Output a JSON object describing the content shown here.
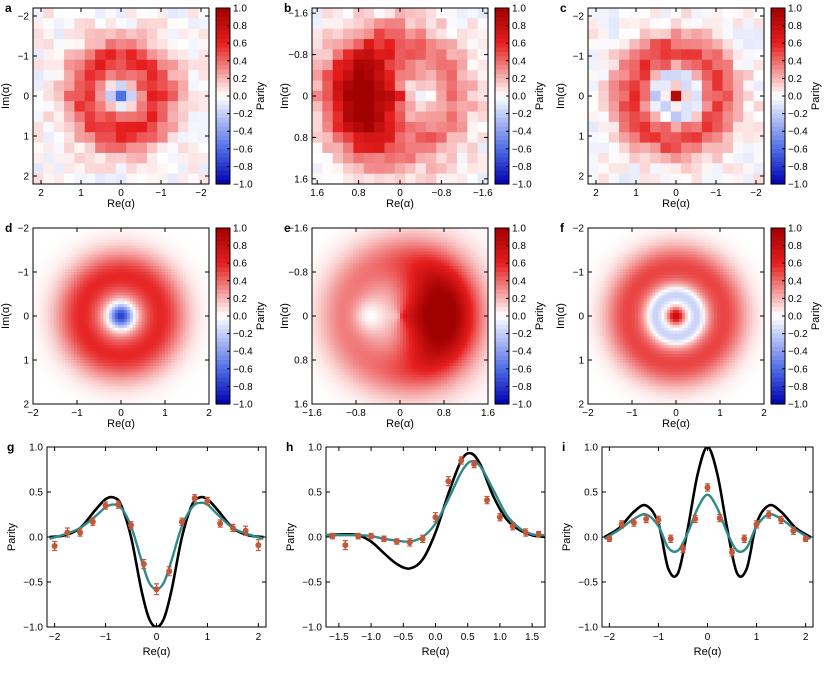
{
  "colors": {
    "theory_line": "#000000",
    "fit_line": "#2e8b8b",
    "data_points": "#c0583a",
    "map_negative": "#0000b0",
    "map_zero": "#ffffff",
    "map_positive": "#a00000"
  },
  "chart_data": [
    {
      "panel": "a",
      "type": "heatmap",
      "kind": "measured",
      "state": "cat-odd",
      "xlabel": "Re(α)",
      "ylabel": "Im(α)",
      "colorbar_label": "Parity",
      "xlim": [
        2.2,
        -2.2
      ],
      "ylim": [
        -2.2,
        2.2
      ],
      "x_ticks": [
        2,
        1,
        0,
        -1,
        -2
      ],
      "y_ticks": [
        -2,
        -1,
        0,
        1,
        2
      ],
      "clim": [
        -1,
        1
      ],
      "colorbar_ticks": [
        "1.0",
        "0.8",
        "0.6",
        "0.4",
        "0.2",
        "0.0",
        "−0.2",
        "−0.4",
        "−0.6",
        "−0.8",
        "−1.0"
      ],
      "grid_cells": 17
    },
    {
      "panel": "b",
      "type": "heatmap",
      "kind": "measured",
      "state": "cat-displaced",
      "xlabel": "Re(α)",
      "ylabel": "Im(α)",
      "colorbar_label": "Parity",
      "xlim": [
        1.7,
        -1.7
      ],
      "ylim": [
        -1.7,
        1.7
      ],
      "x_ticks": [
        1.6,
        0.8,
        0.0,
        -0.8,
        -1.6
      ],
      "y_ticks": [
        -1.6,
        -0.8,
        0.0,
        0.8,
        1.6
      ],
      "clim": [
        -1,
        1
      ],
      "colorbar_ticks": [
        "1.0",
        "0.8",
        "0.6",
        "0.4",
        "0.2",
        "0.0",
        "−0.2",
        "−0.4",
        "−0.6",
        "−0.8",
        "−1.0"
      ],
      "grid_cells": 17
    },
    {
      "panel": "c",
      "type": "heatmap",
      "kind": "measured",
      "state": "cat-even",
      "xlabel": "Re(α)",
      "ylabel": "Im(α)",
      "colorbar_label": "Parity",
      "xlim": [
        2.2,
        -2.2
      ],
      "ylim": [
        -2.2,
        2.2
      ],
      "x_ticks": [
        2,
        1,
        0,
        -1,
        -2
      ],
      "y_ticks": [
        -2,
        -1,
        0,
        1,
        2
      ],
      "clim": [
        -1,
        1
      ],
      "colorbar_ticks": [
        "1.0",
        "0.8",
        "0.6",
        "0.4",
        "0.2",
        "0.0",
        "−0.2",
        "−0.4",
        "−0.6",
        "−0.8",
        "−1.0"
      ],
      "grid_cells": 17
    },
    {
      "panel": "d",
      "type": "heatmap",
      "kind": "simulated",
      "state": "cat-odd",
      "xlabel": "Re(α)",
      "ylabel": "Im(α)",
      "colorbar_label": "Parity",
      "xlim": [
        -2,
        2
      ],
      "ylim": [
        -2,
        2
      ],
      "x_ticks": [
        -2,
        -1,
        0,
        1,
        2
      ],
      "y_ticks": [
        2,
        1,
        0,
        -1,
        -2
      ],
      "clim": [
        -1,
        1
      ],
      "colorbar_ticks": [
        "1.0",
        "0.8",
        "0.6",
        "0.4",
        "0.2",
        "0.0",
        "−0.2",
        "−0.4",
        "−0.6",
        "−0.8",
        "−1.0"
      ],
      "grid_cells": 60
    },
    {
      "panel": "e",
      "type": "heatmap",
      "kind": "simulated",
      "state": "cat-displaced",
      "xlabel": "Re(α)",
      "ylabel": "Im(α)",
      "colorbar_label": "Parity",
      "xlim": [
        -1.6,
        1.6
      ],
      "ylim": [
        -1.6,
        1.6
      ],
      "x_ticks": [
        -1.6,
        -0.8,
        0.0,
        0.8,
        1.6
      ],
      "y_ticks": [
        1.6,
        0.8,
        0.0,
        -0.8,
        -1.6
      ],
      "clim": [
        -1,
        1
      ],
      "colorbar_ticks": [
        "1.0",
        "0.8",
        "0.6",
        "0.4",
        "0.2",
        "0.0",
        "−0.2",
        "−0.4",
        "−0.6",
        "−0.8",
        "−1.0"
      ],
      "grid_cells": 60
    },
    {
      "panel": "f",
      "type": "heatmap",
      "kind": "simulated",
      "state": "cat-even",
      "xlabel": "Re(α)",
      "ylabel": "Im(α)",
      "colorbar_label": "Parity",
      "xlim": [
        -2,
        2
      ],
      "ylim": [
        -2,
        2
      ],
      "x_ticks": [
        -2,
        -1,
        0,
        1,
        2
      ],
      "y_ticks": [
        2,
        1,
        0,
        -1,
        -2
      ],
      "clim": [
        -1,
        1
      ],
      "colorbar_ticks": [
        "1.0",
        "0.8",
        "0.6",
        "0.4",
        "0.2",
        "0.0",
        "−0.2",
        "−0.4",
        "−0.6",
        "−0.8",
        "−1.0"
      ],
      "grid_cells": 60
    },
    {
      "panel": "g",
      "type": "line",
      "xlabel": "Re(α)",
      "ylabel": "Parity",
      "xlim": [
        -2.15,
        2.15
      ],
      "ylim": [
        -1.0,
        1.0
      ],
      "x_ticks": [
        -2,
        -1,
        0,
        1,
        2
      ],
      "y_ticks": [
        "1.0",
        "0.5",
        "0.0",
        "−0.5",
        "−1.0"
      ],
      "series": [
        {
          "role": "theory",
          "x": [
            -2.1,
            -1.8,
            -1.5,
            -1.2,
            -1.0,
            -0.85,
            -0.7,
            -0.5,
            -0.3,
            -0.15,
            0.0,
            0.15,
            0.3,
            0.5,
            0.7,
            0.85,
            1.0,
            1.2,
            1.5,
            1.8,
            2.1
          ],
          "y": [
            0.0,
            0.02,
            0.1,
            0.3,
            0.42,
            0.44,
            0.36,
            0.0,
            -0.58,
            -0.9,
            -1.0,
            -0.9,
            -0.58,
            0.0,
            0.36,
            0.44,
            0.42,
            0.3,
            0.1,
            0.02,
            0.0
          ]
        },
        {
          "role": "fit",
          "x": [
            -2.1,
            -1.8,
            -1.5,
            -1.2,
            -1.0,
            -0.85,
            -0.7,
            -0.5,
            -0.3,
            -0.15,
            0.0,
            0.15,
            0.3,
            0.5,
            0.7,
            0.85,
            1.0,
            1.2,
            1.5,
            1.8,
            2.1
          ],
          "y": [
            -0.02,
            0.03,
            0.1,
            0.23,
            0.33,
            0.36,
            0.33,
            0.12,
            -0.25,
            -0.5,
            -0.58,
            -0.5,
            -0.25,
            0.12,
            0.33,
            0.38,
            0.36,
            0.25,
            0.1,
            0.03,
            -0.02
          ]
        },
        {
          "role": "measured",
          "x": [
            -2.0,
            -1.75,
            -1.5,
            -1.25,
            -1.0,
            -0.75,
            -0.5,
            -0.25,
            0.0,
            0.25,
            0.5,
            0.75,
            1.0,
            1.25,
            1.5,
            1.75,
            2.0
          ],
          "y": [
            -0.1,
            0.05,
            0.05,
            0.17,
            0.35,
            0.36,
            0.13,
            -0.3,
            -0.58,
            -0.38,
            0.17,
            0.43,
            0.4,
            0.15,
            0.1,
            0.07,
            -0.09
          ],
          "err": [
            0.05,
            0.05,
            0.04,
            0.04,
            0.04,
            0.04,
            0.04,
            0.05,
            0.06,
            0.05,
            0.04,
            0.04,
            0.04,
            0.04,
            0.04,
            0.05,
            0.06
          ]
        }
      ]
    },
    {
      "panel": "h",
      "type": "line",
      "xlabel": "Re(α)",
      "ylabel": "Parity",
      "xlim": [
        -1.7,
        1.7
      ],
      "ylim": [
        -1.0,
        1.0
      ],
      "x_ticks": [
        "−1.5",
        "−1.0",
        "−0.5",
        "0.0",
        "0.5",
        "1.0",
        "1.5"
      ],
      "x_tick_values": [
        -1.5,
        -1.0,
        -0.5,
        0.0,
        0.5,
        1.0,
        1.5
      ],
      "y_ticks": [
        "1.0",
        "0.5",
        "0.0",
        "−0.5",
        "−1.0"
      ],
      "series": [
        {
          "role": "theory",
          "x": [
            -1.7,
            -1.4,
            -1.2,
            -1.0,
            -0.8,
            -0.6,
            -0.4,
            -0.2,
            0.0,
            0.2,
            0.4,
            0.55,
            0.7,
            0.9,
            1.1,
            1.3,
            1.5,
            1.7
          ],
          "y": [
            0.02,
            0.03,
            0.02,
            -0.05,
            -0.18,
            -0.3,
            -0.35,
            -0.25,
            0.05,
            0.48,
            0.85,
            0.93,
            0.8,
            0.45,
            0.2,
            0.08,
            0.02,
            0.0
          ]
        },
        {
          "role": "fit",
          "x": [
            -1.7,
            -1.4,
            -1.2,
            -1.0,
            -0.8,
            -0.6,
            -0.4,
            -0.2,
            0.0,
            0.2,
            0.4,
            0.55,
            0.7,
            0.9,
            1.1,
            1.3,
            1.5,
            1.7
          ],
          "y": [
            0.02,
            0.02,
            0.02,
            0.01,
            -0.02,
            -0.04,
            -0.05,
            0.0,
            0.15,
            0.42,
            0.72,
            0.84,
            0.78,
            0.52,
            0.25,
            0.1,
            0.03,
            0.02
          ]
        },
        {
          "role": "measured",
          "x": [
            -1.6,
            -1.4,
            -1.2,
            -1.0,
            -0.8,
            -0.6,
            -0.4,
            -0.2,
            0.0,
            0.2,
            0.4,
            0.6,
            0.8,
            1.0,
            1.2,
            1.4,
            1.6
          ],
          "y": [
            0.01,
            -0.09,
            0.01,
            0.01,
            -0.02,
            -0.05,
            -0.06,
            -0.02,
            0.22,
            0.62,
            0.85,
            0.81,
            0.41,
            0.22,
            0.12,
            0.05,
            0.03
          ],
          "err": [
            0.03,
            0.05,
            0.03,
            0.03,
            0.03,
            0.03,
            0.04,
            0.04,
            0.05,
            0.05,
            0.04,
            0.04,
            0.04,
            0.04,
            0.04,
            0.04,
            0.03
          ]
        }
      ]
    },
    {
      "panel": "i",
      "type": "line",
      "xlabel": "Re(α)",
      "ylabel": "Parity",
      "xlim": [
        -2.15,
        2.15
      ],
      "ylim": [
        -1.0,
        1.0
      ],
      "x_ticks": [
        -2,
        -1,
        0,
        1,
        2
      ],
      "y_ticks": [
        "1.0",
        "0.5",
        "0.0",
        "−0.5",
        "−1.0"
      ],
      "series": [
        {
          "role": "theory",
          "x": [
            -2.1,
            -1.8,
            -1.5,
            -1.25,
            -1.0,
            -0.8,
            -0.6,
            -0.4,
            -0.2,
            0.0,
            0.2,
            0.4,
            0.6,
            0.8,
            1.0,
            1.25,
            1.5,
            1.8,
            2.1
          ],
          "y": [
            0.0,
            0.1,
            0.28,
            0.35,
            0.15,
            -0.35,
            -0.4,
            0.1,
            0.7,
            1.0,
            0.7,
            0.1,
            -0.4,
            -0.35,
            0.15,
            0.35,
            0.28,
            0.1,
            0.0
          ]
        },
        {
          "role": "fit",
          "x": [
            -2.1,
            -1.8,
            -1.5,
            -1.25,
            -1.0,
            -0.8,
            -0.6,
            -0.4,
            -0.2,
            0.0,
            0.2,
            0.4,
            0.6,
            0.8,
            1.0,
            1.25,
            1.5,
            1.8,
            2.1
          ],
          "y": [
            -0.02,
            0.08,
            0.2,
            0.25,
            0.12,
            -0.12,
            -0.15,
            0.05,
            0.32,
            0.47,
            0.32,
            0.05,
            -0.15,
            -0.12,
            0.12,
            0.25,
            0.2,
            0.08,
            -0.02
          ]
        },
        {
          "role": "measured",
          "x": [
            -2.0,
            -1.75,
            -1.5,
            -1.25,
            -1.0,
            -0.75,
            -0.5,
            -0.25,
            0.0,
            0.25,
            0.5,
            0.75,
            1.0,
            1.25,
            1.5,
            1.75,
            2.0
          ],
          "y": [
            -0.02,
            0.14,
            0.16,
            0.2,
            0.19,
            -0.02,
            -0.13,
            0.2,
            0.55,
            0.21,
            -0.17,
            -0.02,
            0.14,
            0.25,
            0.19,
            0.07,
            -0.02
          ],
          "err": [
            0.03,
            0.04,
            0.04,
            0.04,
            0.04,
            0.04,
            0.04,
            0.04,
            0.04,
            0.04,
            0.04,
            0.04,
            0.04,
            0.04,
            0.04,
            0.04,
            0.03
          ]
        }
      ]
    }
  ]
}
